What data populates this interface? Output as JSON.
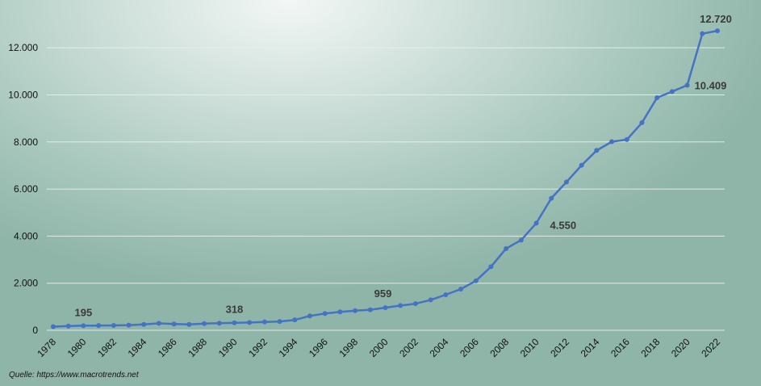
{
  "chart_data": {
    "type": "line",
    "title": "",
    "xlabel": "",
    "ylabel": "",
    "x": [
      1978,
      1979,
      1980,
      1981,
      1982,
      1983,
      1984,
      1985,
      1986,
      1987,
      1988,
      1989,
      1990,
      1991,
      1992,
      1993,
      1994,
      1995,
      1996,
      1997,
      1998,
      1999,
      2000,
      2001,
      2002,
      2003,
      2004,
      2005,
      2006,
      2007,
      2008,
      2009,
      2010,
      2011,
      2012,
      2013,
      2014,
      2015,
      2016,
      2017,
      2018,
      2019,
      2020,
      2021,
      2022
    ],
    "xticks": [
      1978,
      1980,
      1982,
      1984,
      1986,
      1988,
      1990,
      1992,
      1994,
      1996,
      1998,
      2000,
      2002,
      2004,
      2006,
      2008,
      2010,
      2012,
      2014,
      2016,
      2018,
      2020,
      2022
    ],
    "series": [
      {
        "values": [
          155,
          180,
          195,
          200,
          205,
          220,
          250,
          295,
          265,
          250,
          285,
          300,
          318,
          330,
          355,
          375,
          440,
          610,
          710,
          780,
          830,
          870,
          959,
          1050,
          1130,
          1290,
          1510,
          1750,
          2100,
          2700,
          3470,
          3830,
          4550,
          5610,
          6300,
          7010,
          7640,
          8010,
          8100,
          8820,
          9880,
          10140,
          10409,
          12600,
          12720
        ]
      }
    ],
    "ylim": [
      0,
      13000
    ],
    "yticks": [
      0,
      2000,
      4000,
      6000,
      8000,
      10000,
      12000
    ],
    "ytick_labels": [
      "0",
      "2.000",
      "4.000",
      "6.000",
      "8.000",
      "10.000",
      "12.000"
    ],
    "grid": true,
    "line_color": "#4472c4",
    "annotations": [
      {
        "x": 1980,
        "text": "195"
      },
      {
        "x": 1990,
        "text": "318"
      },
      {
        "x": 2000,
        "text": "959"
      },
      {
        "x": 2010,
        "text": "4.550"
      },
      {
        "x": 2020,
        "text": "10.409"
      },
      {
        "x": 2022,
        "text": "12.720"
      }
    ],
    "source": "Quelle: https://www.macrotrends.net"
  }
}
